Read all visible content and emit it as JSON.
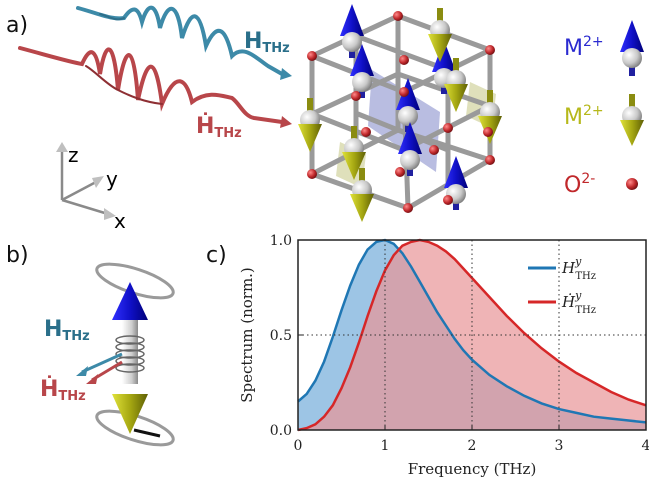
{
  "panels": {
    "a": "a)",
    "b": "b)",
    "c": "c)"
  },
  "panel_a": {
    "h_label": "H",
    "h_sub": "THz",
    "hdot_label": "Ḣ",
    "hdot_sub": "THz",
    "axes": {
      "z": "z",
      "y": "y",
      "x": "x"
    },
    "legend": [
      {
        "text": "M",
        "sup": "2+",
        "color": "#2a2ad0"
      },
      {
        "text": "M",
        "sup": "2+",
        "color": "#b6b81a"
      },
      {
        "text": "O",
        "sup": "2-",
        "color": "#c0282b"
      }
    ]
  },
  "panel_b": {
    "h_label": "H",
    "h_sub": "THz",
    "hdot_label": "Ḣ",
    "hdot_sub": "THz"
  },
  "colors": {
    "blue_wave": "#3d8aa8",
    "red_wave": "#b8464a",
    "series1": "#1f77b4",
    "series2": "#d62728",
    "series1_fill": "#8cbbe0",
    "series2_fill": "#e89497"
  },
  "chart_data": {
    "type": "area",
    "xlabel": "Frequency (THz)",
    "ylabel": "Spectrum (norm.)",
    "xlim": [
      0,
      4
    ],
    "ylim": [
      0,
      1.0
    ],
    "xticks": [
      "0",
      "1",
      "2",
      "3",
      "4"
    ],
    "yticks": [
      "0.0",
      "0.5",
      "1.0"
    ],
    "grid": "dotted at major ticks",
    "legend_position": "top-right",
    "x": [
      0,
      0.1,
      0.2,
      0.3,
      0.4,
      0.5,
      0.6,
      0.7,
      0.8,
      0.9,
      1.0,
      1.1,
      1.2,
      1.3,
      1.4,
      1.5,
      1.6,
      1.7,
      1.8,
      1.9,
      2.0,
      2.2,
      2.4,
      2.6,
      2.8,
      3.0,
      3.2,
      3.4,
      3.6,
      3.8,
      4.0
    ],
    "series": [
      {
        "name": "H^y_THz",
        "label_main": "H",
        "label_sup": "y",
        "label_sub": "THz",
        "color": "#1f77b4",
        "values": [
          0.15,
          0.19,
          0.26,
          0.36,
          0.49,
          0.63,
          0.76,
          0.87,
          0.95,
          0.99,
          1.0,
          0.98,
          0.93,
          0.86,
          0.78,
          0.7,
          0.62,
          0.55,
          0.48,
          0.42,
          0.37,
          0.29,
          0.23,
          0.18,
          0.14,
          0.11,
          0.09,
          0.07,
          0.06,
          0.05,
          0.04
        ]
      },
      {
        "name": "Ḣ^y_THz",
        "label_main": "Ḣ",
        "label_sup": "y",
        "label_sub": "THz",
        "color": "#d62728",
        "values": [
          0.0,
          0.01,
          0.03,
          0.07,
          0.13,
          0.22,
          0.33,
          0.46,
          0.6,
          0.73,
          0.84,
          0.92,
          0.97,
          0.99,
          1.0,
          0.99,
          0.97,
          0.94,
          0.9,
          0.85,
          0.8,
          0.7,
          0.6,
          0.51,
          0.43,
          0.36,
          0.3,
          0.25,
          0.2,
          0.16,
          0.13
        ]
      }
    ]
  }
}
